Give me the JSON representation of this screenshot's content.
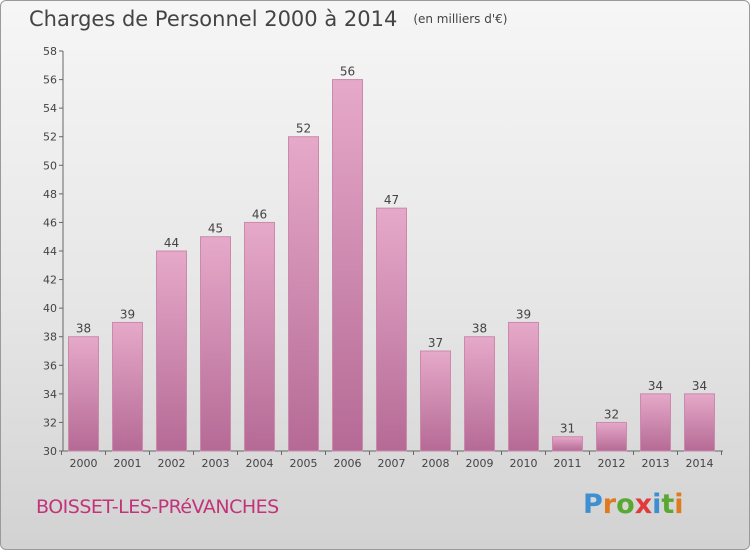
{
  "title": "Charges de Personnel 2000 à 2014",
  "subtitle": "(en milliers d'€)",
  "commune": "BOISSET-LES-PRéVANCHES",
  "brand": {
    "letters": [
      "P",
      "r",
      "o",
      "x",
      "i",
      "t",
      "i"
    ],
    "colors": [
      "#3d8fd1",
      "#e07a1f",
      "#5aa832",
      "#e23a3a",
      "#3d8fd1",
      "#5aa832",
      "#e07a1f"
    ]
  },
  "colors": {
    "bar_light": "#e6a9c9",
    "bar_dark": "#b56a95",
    "bar_edge": "#c98aac",
    "axis": "#666666"
  },
  "chart_data": {
    "type": "bar",
    "title": "Charges de Personnel 2000 à 2014",
    "subtitle": "(en milliers d'€)",
    "categories": [
      "2000",
      "2001",
      "2002",
      "2003",
      "2004",
      "2005",
      "2006",
      "2007",
      "2008",
      "2009",
      "2010",
      "2011",
      "2012",
      "2013",
      "2014"
    ],
    "values": [
      38,
      39,
      44,
      45,
      46,
      52,
      56,
      47,
      37,
      38,
      39,
      31,
      32,
      34,
      34
    ],
    "ylim": [
      30,
      58
    ],
    "yticks": [
      30,
      32,
      34,
      36,
      38,
      40,
      42,
      44,
      46,
      48,
      50,
      52,
      54,
      56,
      58
    ],
    "grid": false,
    "data_labels": true
  }
}
